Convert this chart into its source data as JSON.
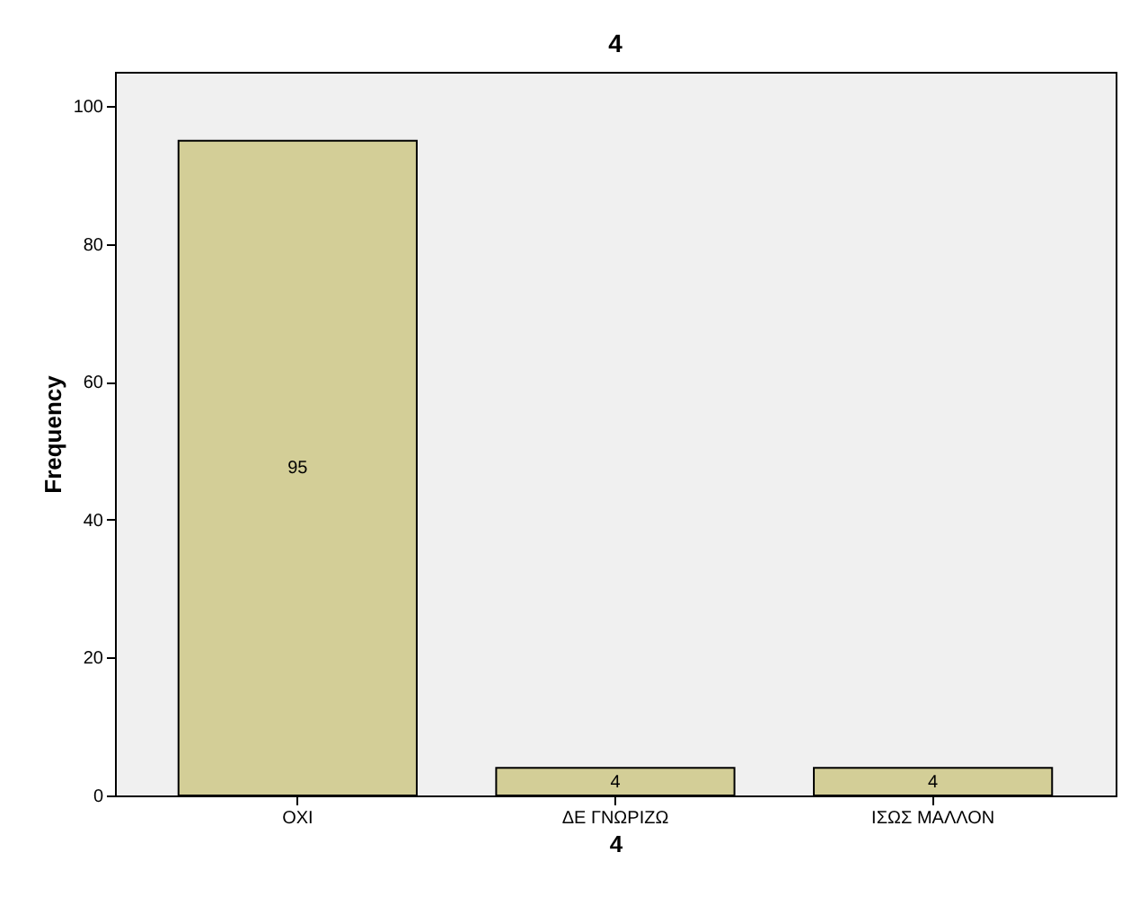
{
  "chart_data": {
    "type": "bar",
    "title": "4",
    "xlabel": "4",
    "ylabel": "Frequency",
    "categories": [
      "ΟΧΙ",
      "ΔΕ ΓΝΩΡΙΖΩ",
      "ΙΣΩΣ ΜΑΛΛΟΝ"
    ],
    "values": [
      95,
      4,
      4
    ],
    "color": "#d3ce97",
    "ylim": [
      0,
      105
    ],
    "yticks": [
      0,
      20,
      40,
      60,
      80,
      100
    ],
    "data_labels": true,
    "grid": false
  }
}
